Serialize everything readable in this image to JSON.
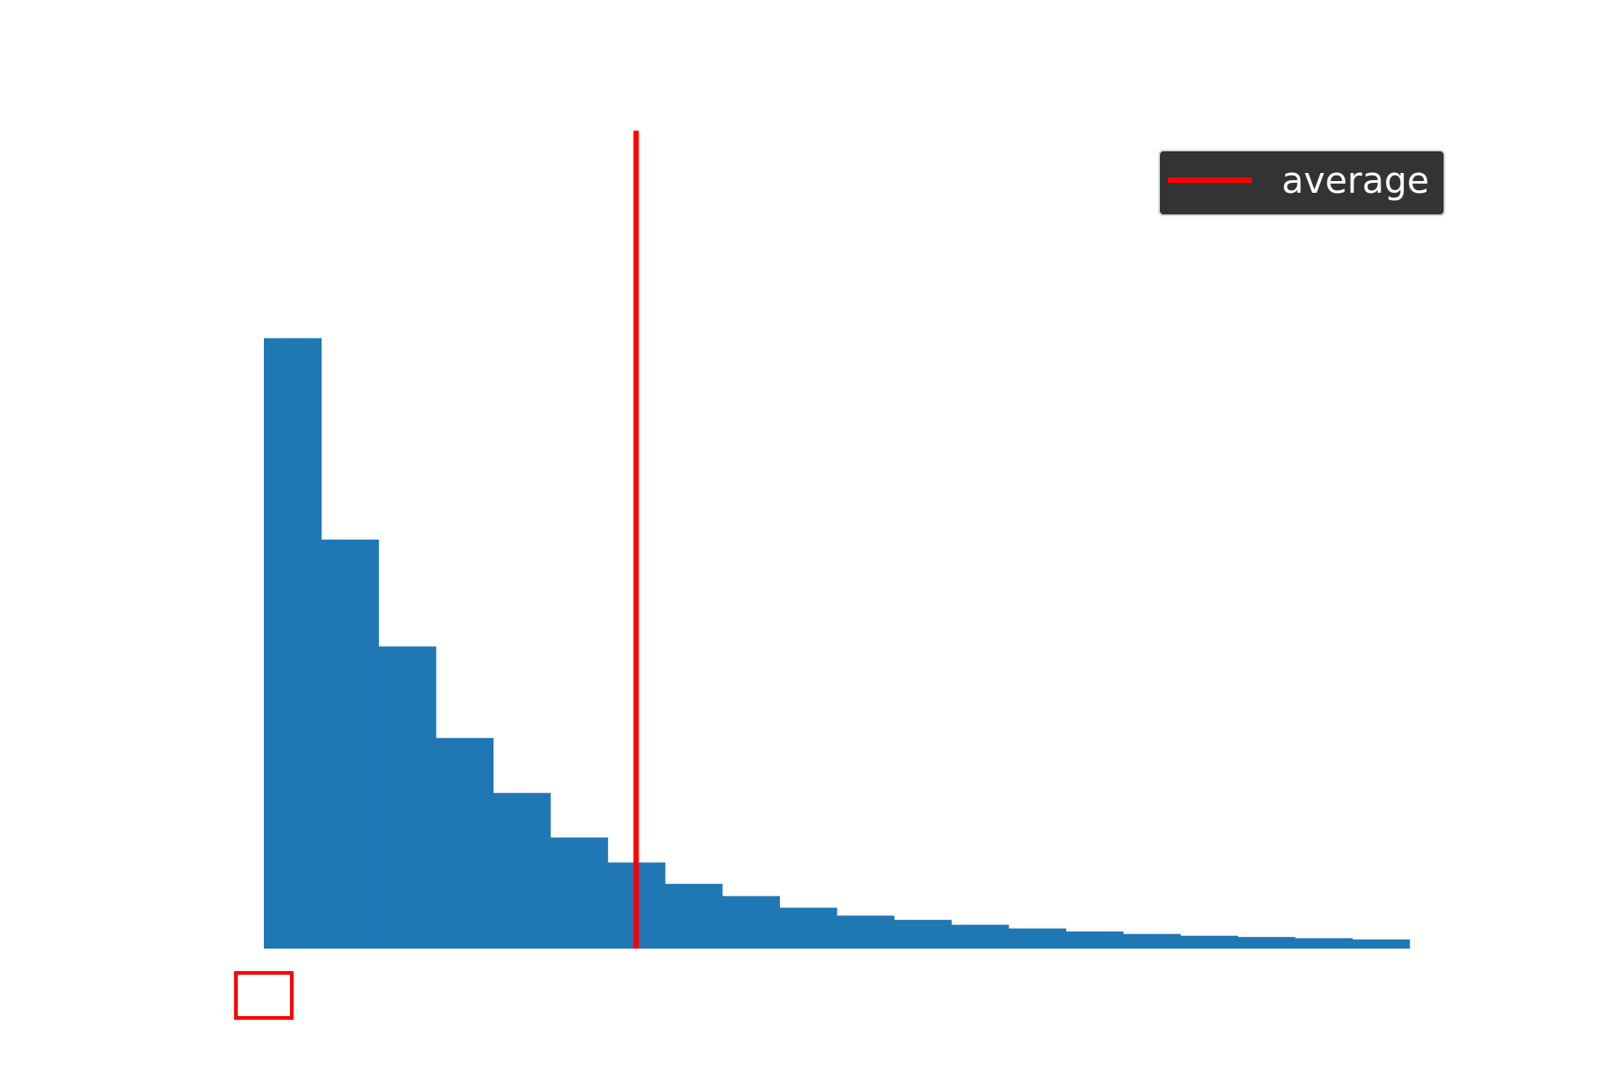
{
  "chart_data": {
    "type": "bar",
    "title": "",
    "xlabel": "",
    "ylabel": "",
    "axes_visible": false,
    "grid": false,
    "bar_color": "#1f77b4",
    "bins": 20,
    "values": [
      100,
      67,
      49.5,
      34.5,
      25.5,
      18.2,
      14.1,
      10.6,
      8.6,
      6.7,
      5.4,
      4.7,
      3.9,
      3.3,
      2.8,
      2.4,
      2.1,
      1.9,
      1.7,
      1.5
    ],
    "ylim": [
      0,
      134
    ],
    "average_line": {
      "label": "average",
      "bin_position": 6.5,
      "color": "#ff0000"
    },
    "legend": {
      "placement": "top-right",
      "background": "#333333",
      "text_color": "#ffffff"
    },
    "marker_box": {
      "bin_position": 0,
      "color": "#ff0000"
    }
  }
}
